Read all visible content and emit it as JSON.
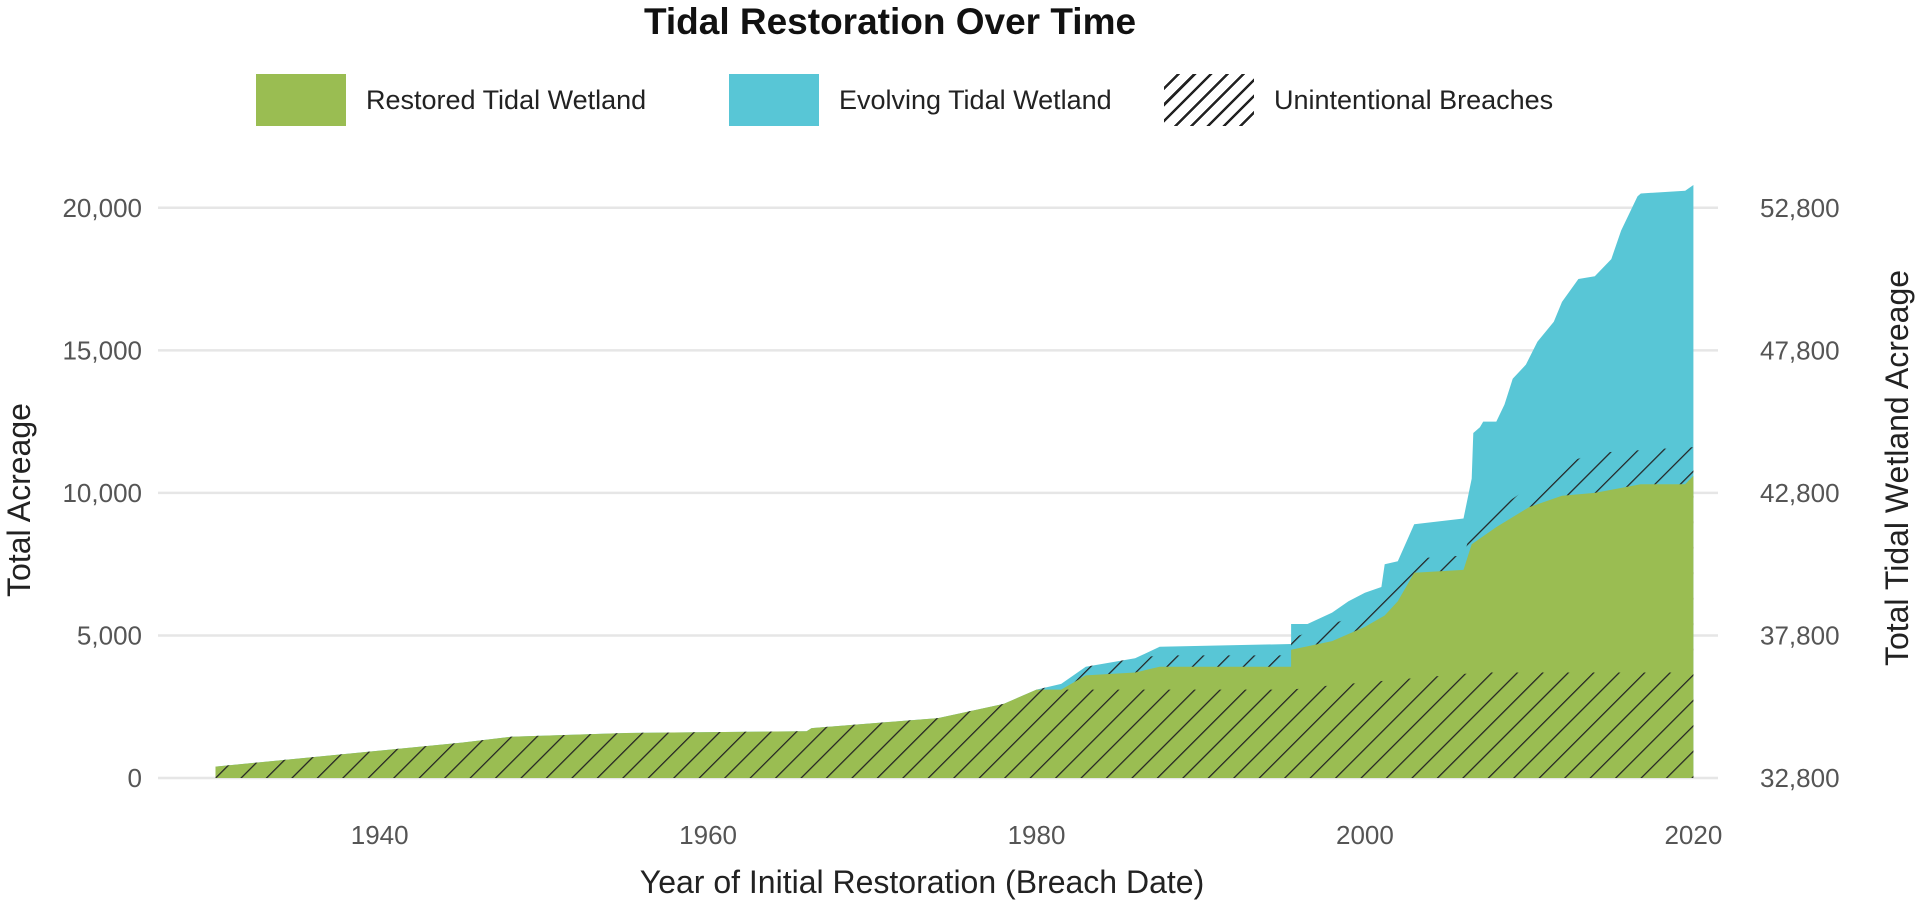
{
  "chart_data": {
    "type": "area",
    "title": "Tidal Restoration Over Time",
    "xlabel": "Year of Initial Restoration (Breach Date)",
    "ylabel": "Total Acreage",
    "y2label": "Total Tidal Wetland Acreage",
    "xlim": [
      1926.5,
      2021.5
    ],
    "ylim": [
      0,
      21500
    ],
    "x_ticks": [
      1940,
      1960,
      1980,
      2000,
      2020
    ],
    "x_tick_labels": [
      "1940",
      "1960",
      "1980",
      "2000",
      "2020"
    ],
    "y_ticks": [
      0,
      5000,
      10000,
      15000,
      20000
    ],
    "y_tick_labels": [
      "0",
      "5,000",
      "10,000",
      "15,000",
      "20,000"
    ],
    "y2_ticks": [
      0,
      5000,
      10000,
      15000,
      20000
    ],
    "y2_tick_labels": [
      "32,800",
      "37,800",
      "42,800",
      "47,800",
      "52,800"
    ],
    "grid": true,
    "legend": [
      {
        "label": "Restored Tidal Wetland",
        "color": "#9abd52",
        "pattern": "solid"
      },
      {
        "label": "Evolving Tidal Wetland",
        "color": "#58c6d6",
        "pattern": "solid"
      },
      {
        "label": "Unintentional Breaches",
        "color": "#222222",
        "pattern": "hatch"
      }
    ],
    "legend_position": "top",
    "series": [
      {
        "name": "Evolving Tidal Wetland",
        "color": "#58c6d6",
        "pattern": "solid",
        "points": [
          [
            1930,
            400
          ],
          [
            1935,
            680
          ],
          [
            1940,
            960
          ],
          [
            1945,
            1240
          ],
          [
            1948,
            1450
          ],
          [
            1955,
            1580
          ],
          [
            1966,
            1640
          ],
          [
            1966.3,
            1750
          ],
          [
            1974,
            2100
          ],
          [
            1978,
            2600
          ],
          [
            1980,
            3100
          ],
          [
            1981.5,
            3300
          ],
          [
            1983,
            3900
          ],
          [
            1986,
            4200
          ],
          [
            1987.5,
            4600
          ],
          [
            1995.5,
            4700
          ],
          [
            1995.5,
            5400
          ],
          [
            1996.5,
            5400
          ],
          [
            1998,
            5800
          ],
          [
            1999,
            6200
          ],
          [
            2000,
            6500
          ],
          [
            2001,
            6700
          ],
          [
            2001.2,
            7500
          ],
          [
            2002,
            7600
          ],
          [
            2003,
            8900
          ],
          [
            2006,
            9100
          ],
          [
            2006.5,
            10500
          ],
          [
            2006.6,
            12100
          ],
          [
            2007,
            12300
          ],
          [
            2007.2,
            12500
          ],
          [
            2008,
            12500
          ],
          [
            2008.5,
            13100
          ],
          [
            2009,
            14000
          ],
          [
            2009.8,
            14500
          ],
          [
            2010.5,
            15300
          ],
          [
            2011.5,
            16000
          ],
          [
            2012,
            16700
          ],
          [
            2013,
            17500
          ],
          [
            2014,
            17600
          ],
          [
            2015,
            18200
          ],
          [
            2015.6,
            19200
          ],
          [
            2016.6,
            20400
          ],
          [
            2016.8,
            20500
          ],
          [
            2019.5,
            20600
          ],
          [
            2020,
            20800
          ]
        ]
      },
      {
        "name": "Unintentional Breaches",
        "color": "#222222",
        "pattern": "hatch",
        "points": [
          [
            1930,
            400
          ],
          [
            1935,
            680
          ],
          [
            1940,
            960
          ],
          [
            1945,
            1240
          ],
          [
            1948,
            1450
          ],
          [
            1955,
            1580
          ],
          [
            1966,
            1640
          ],
          [
            1966.3,
            1750
          ],
          [
            1974,
            2100
          ],
          [
            1978,
            2600
          ],
          [
            1980,
            3100
          ],
          [
            1981.5,
            3300
          ],
          [
            1983,
            3900
          ],
          [
            1986,
            4200
          ],
          [
            1987.5,
            4300
          ],
          [
            1995.5,
            4300
          ],
          [
            1995.5,
            4900
          ],
          [
            1998,
            5400
          ],
          [
            2000,
            5800
          ],
          [
            2001.2,
            6500
          ],
          [
            2002,
            7000
          ],
          [
            2003,
            7700
          ],
          [
            2006,
            7800
          ],
          [
            2006.5,
            8700
          ],
          [
            2007,
            8900
          ],
          [
            2008,
            9400
          ],
          [
            2010,
            10200
          ],
          [
            2012,
            11000
          ],
          [
            2014,
            11400
          ],
          [
            2016.8,
            11500
          ],
          [
            2019.5,
            11600
          ],
          [
            2020,
            11600
          ]
        ]
      },
      {
        "name": "Restored Tidal Wetland",
        "color": "#9abd52",
        "pattern": "solid",
        "points": [
          [
            1930,
            400
          ],
          [
            1935,
            680
          ],
          [
            1940,
            960
          ],
          [
            1945,
            1240
          ],
          [
            1948,
            1450
          ],
          [
            1955,
            1580
          ],
          [
            1966,
            1640
          ],
          [
            1966.3,
            1750
          ],
          [
            1974,
            2100
          ],
          [
            1978,
            2600
          ],
          [
            1980,
            3100
          ],
          [
            1981.5,
            3100
          ],
          [
            1983,
            3600
          ],
          [
            1986,
            3700
          ],
          [
            1987.5,
            3900
          ],
          [
            1995.5,
            3900
          ],
          [
            1995.5,
            4500
          ],
          [
            1998,
            4800
          ],
          [
            2000,
            5300
          ],
          [
            2001.2,
            5700
          ],
          [
            2002,
            6200
          ],
          [
            2003,
            7200
          ],
          [
            2006,
            7300
          ],
          [
            2006.5,
            8200
          ],
          [
            2008,
            8800
          ],
          [
            2010,
            9500
          ],
          [
            2012,
            9900
          ],
          [
            2014,
            10000
          ],
          [
            2016.8,
            10300
          ],
          [
            2019.5,
            10300
          ],
          [
            2020,
            10600
          ]
        ]
      },
      {
        "name": "Unintentional Breaches (restored portion)",
        "color": "#222222",
        "pattern": "hatch",
        "points": [
          [
            1930,
            400
          ],
          [
            1935,
            680
          ],
          [
            1940,
            960
          ],
          [
            1945,
            1240
          ],
          [
            1948,
            1450
          ],
          [
            1955,
            1580
          ],
          [
            1966,
            1640
          ],
          [
            1966.3,
            1750
          ],
          [
            1974,
            2100
          ],
          [
            1978,
            2600
          ],
          [
            1980,
            3100
          ],
          [
            1981.5,
            3100
          ],
          [
            1983,
            3100
          ],
          [
            1995.5,
            3100
          ],
          [
            1998,
            3250
          ],
          [
            2007,
            3700
          ],
          [
            2020,
            3700
          ]
        ]
      }
    ]
  }
}
